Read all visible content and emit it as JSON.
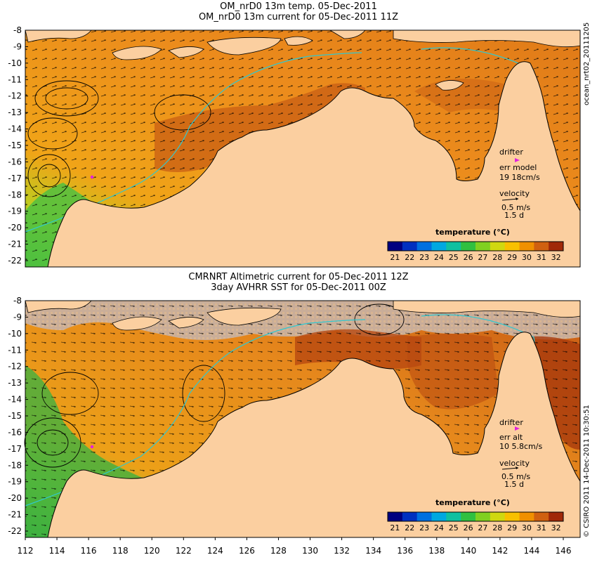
{
  "panels": [
    {
      "title1": "OM_nrD0 13m temp. 05-Dec-2011",
      "title2": "OM_nrD0 13m current for 05-Dec-2011 11Z",
      "side_label": "ocean_nrt02_20111205",
      "drifter": {
        "label": "drifter",
        "err_label": "err model",
        "err_value": "19 18cm/s"
      },
      "velocity": {
        "label": "velocity",
        "scale1": "0.5 m/s",
        "scale2": "1.5 d"
      }
    },
    {
      "title1": "CMRNRT Altimetric current for 05-Dec-2011 12Z",
      "title2": "3day AVHRR SST for 05-Dec-2011 00Z",
      "side_label": "© CSIRO 2011  14-Dec-2011 10:30:51",
      "drifter": {
        "label": "drifter",
        "err_label": "err alt",
        "err_value": "10 5.8cm/s"
      },
      "velocity": {
        "label": "velocity",
        "scale1": "0.5 m/s",
        "scale2": "1.5 d"
      }
    }
  ],
  "colorbar": {
    "title": "temperature (°C)",
    "ticks": [
      "21",
      "22",
      "23",
      "24",
      "25",
      "26",
      "27",
      "28",
      "29",
      "30",
      "31",
      "32"
    ],
    "colors": [
      "#000080",
      "#0030c0",
      "#0070e0",
      "#00a8e0",
      "#10c0a0",
      "#30c040",
      "#80d020",
      "#d0d810",
      "#f8c000",
      "#f09000",
      "#d06010",
      "#a02808"
    ]
  },
  "axes": {
    "y_ticks": [
      "-8",
      "-9",
      "-10",
      "-11",
      "-12",
      "-13",
      "-14",
      "-15",
      "-16",
      "-17",
      "-18",
      "-19",
      "-20",
      "-21",
      "-22"
    ],
    "x_ticks": [
      "112",
      "114",
      "116",
      "118",
      "120",
      "122",
      "124",
      "126",
      "128",
      "130",
      "132",
      "134",
      "136",
      "138",
      "140",
      "142",
      "144",
      "146"
    ]
  },
  "colors": {
    "land": "#fbcfa0",
    "ocean_warm": "#ee8a1c",
    "ocean_mid": "#f0a418",
    "ocean_cool": "#44c040",
    "ocean_hot": "#b84810",
    "no_data": "#c8b0a0",
    "isobath": "#30c8d0",
    "drifter": "#e020e0"
  }
}
